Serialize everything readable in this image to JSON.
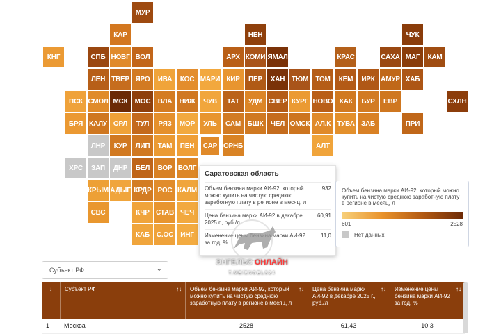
{
  "chart_data": {
    "type": "heatmap",
    "colors": {
      "no_data": "#c8c8c8",
      "scale": [
        "#f7d07a",
        "#e9932c",
        "#b35a12",
        "#6e2b07"
      ]
    },
    "tiles": [
      {
        "label": "МУР",
        "fill": "#9e4a10"
      },
      {
        "label": "КАР",
        "fill": "#d3771f"
      },
      {
        "label": "НЕН",
        "fill": "#8f400c"
      },
      {
        "label": "ЧУК",
        "fill": "#8a3c0a"
      },
      {
        "label": "КНГ",
        "fill": "#eb9a34"
      },
      {
        "label": "СПБ",
        "fill": "#9a4710"
      },
      {
        "label": "НОВГ",
        "fill": "#e08a2b"
      },
      {
        "label": "ВОЛ",
        "fill": "#c2661a"
      },
      {
        "label": "АРХ",
        "fill": "#b95f17"
      },
      {
        "label": "КОМИ",
        "fill": "#a9541a"
      },
      {
        "label": "ЯМАЛ",
        "fill": "#7a3208"
      },
      {
        "label": "КРАС",
        "fill": "#b4601a"
      },
      {
        "label": "НЕТ",
        "fill": "#ffffff",
        "hidden": true
      },
      {
        "label": "САХА",
        "fill": "#9a4812"
      },
      {
        "label": "МАГ",
        "fill": "#8a3c0a"
      },
      {
        "label": "КАМ",
        "fill": "#a04d12"
      },
      {
        "label": "ЛЕН",
        "fill": "#b75f18"
      },
      {
        "label": "ТВЕР",
        "fill": "#c66d1e"
      },
      {
        "label": "ЯРО",
        "fill": "#d27a22"
      },
      {
        "label": "ИВА",
        "fill": "#f0a43a"
      },
      {
        "label": "КОС",
        "fill": "#e38d2d"
      },
      {
        "label": "МАРИ",
        "fill": "#f2a83e"
      },
      {
        "label": "КИР",
        "fill": "#e8952f"
      },
      {
        "label": "ПЕР",
        "fill": "#b05a16"
      },
      {
        "label": "ХАН",
        "fill": "#7a3208"
      },
      {
        "label": "ТЮМ",
        "fill": "#a9541a"
      },
      {
        "label": "ТОМ",
        "fill": "#b55d17"
      },
      {
        "label": "КЕМ",
        "fill": "#b35a16"
      },
      {
        "label": "ИРК",
        "fill": "#b05816"
      },
      {
        "label": "АМУР",
        "fill": "#c06819"
      },
      {
        "label": "ХАБ",
        "fill": "#ad5616"
      },
      {
        "label": "ПСК",
        "fill": "#efa23a"
      },
      {
        "label": "СМОЛ",
        "fill": "#e08b2a"
      },
      {
        "label": "МСК",
        "fill": "#6b2a06"
      },
      {
        "label": "МОС",
        "fill": "#8e3f0c"
      },
      {
        "label": "ВЛА",
        "fill": "#d47c22"
      },
      {
        "label": "НИЖ",
        "fill": "#d07822"
      },
      {
        "label": "ЧУВ",
        "fill": "#f1a63c"
      },
      {
        "label": "ТАТ",
        "fill": "#bb6319"
      },
      {
        "label": "УДМ",
        "fill": "#dc8526"
      },
      {
        "label": "СВЕР",
        "fill": "#b45c17"
      },
      {
        "label": "КУРГ",
        "fill": "#eb9a33"
      },
      {
        "label": "НОВО",
        "fill": "#b95f18"
      },
      {
        "label": "ХАК",
        "fill": "#d17a21"
      },
      {
        "label": "БУР",
        "fill": "#d27b23"
      },
      {
        "label": "ЕВР",
        "fill": "#cf7720"
      },
      {
        "label": "СХЛН",
        "fill": "#8c3d0b"
      },
      {
        "label": "БРЯ",
        "fill": "#eb9932"
      },
      {
        "label": "КАЛУ",
        "fill": "#cf7720"
      },
      {
        "label": "ОРЛ",
        "fill": "#efa238"
      },
      {
        "label": "ТУЛ",
        "fill": "#c46a1c"
      },
      {
        "label": "РЯЗ",
        "fill": "#e5902c"
      },
      {
        "label": "МОР",
        "fill": "#f2a93f"
      },
      {
        "label": "УЛЬ",
        "fill": "#e8952f"
      },
      {
        "label": "САМ",
        "fill": "#d27b23"
      },
      {
        "label": "БШК",
        "fill": "#d07921"
      },
      {
        "label": "ЧЕЛ",
        "fill": "#c56c1d"
      },
      {
        "label": "ОМСК",
        "fill": "#cd751f"
      },
      {
        "label": "АЛ.К",
        "fill": "#e08a2a"
      },
      {
        "label": "ТУВА",
        "fill": "#e3902c"
      },
      {
        "label": "ЗАБ",
        "fill": "#d98125"
      },
      {
        "label": "ПРИ",
        "fill": "#c06719"
      },
      {
        "label": "ЛНР",
        "fill": "#c8c8c8"
      },
      {
        "label": "КУР",
        "fill": "#d17921"
      },
      {
        "label": "ЛИП",
        "fill": "#d07821"
      },
      {
        "label": "ТАМ",
        "fill": "#eb9a33"
      },
      {
        "label": "ПЕН",
        "fill": "#ef9f37"
      },
      {
        "label": "САР",
        "fill": "#e08a2a",
        "selected": true
      },
      {
        "label": "ОРНБ",
        "fill": "#d98325"
      },
      {
        "label": "АЛТ",
        "fill": "#f0a43b"
      },
      {
        "label": "ХРС",
        "fill": "#c8c8c8"
      },
      {
        "label": "ЗАП",
        "fill": "#c8c8c8"
      },
      {
        "label": "ДНР",
        "fill": "#c8c8c8"
      },
      {
        "label": "БЕЛ",
        "fill": "#bf6519"
      },
      {
        "label": "ВОР",
        "fill": "#d88125"
      },
      {
        "label": "ВОЛГ",
        "fill": "#dd8727"
      },
      {
        "label": "КРЫМ",
        "fill": "#eda036"
      },
      {
        "label": "АДЫГ",
        "fill": "#f0a53c"
      },
      {
        "label": "КРДР",
        "fill": "#d37c23"
      },
      {
        "label": "РОС",
        "fill": "#e18c2b"
      },
      {
        "label": "КАЛМ",
        "fill": "#f0a53c"
      },
      {
        "label": "СВС",
        "fill": "#e9972f"
      },
      {
        "label": "КЧР",
        "fill": "#f0a43b"
      },
      {
        "label": "СТАВ",
        "fill": "#e8952f"
      },
      {
        "label": "ЧЕЧ",
        "fill": "#f2a93f"
      },
      {
        "label": "КАБ",
        "fill": "#f0a53c"
      },
      {
        "label": "С.ОС",
        "fill": "#efa23a"
      },
      {
        "label": "ИНГ",
        "fill": "#f3ab41"
      }
    ]
  },
  "tooltip": {
    "title": "Саратовская область",
    "rows": [
      {
        "label": "Объем бензина марки АИ-92, который можно купить на чистую среднюю заработную плату в регионе в месяц, л",
        "value": "932"
      },
      {
        "label": "Цена бензина марки АИ-92 в декабре 2025 г., руб./л",
        "value": "60,91"
      },
      {
        "label": "Изменение цены бензина марки АИ-92 за год, %",
        "value": "11,0"
      }
    ]
  },
  "legend": {
    "title": "Объем бензина марки АИ-92, который можно купить на чистую среднюю заработную плату в регионе в месяц, л",
    "min": "601",
    "max": "2528",
    "no_data": "Нет данных"
  },
  "filter": {
    "label": "Субъект РФ"
  },
  "watermark": {
    "line1a": "ЭНГЕЛЬС",
    "line1b": "ОНЛАЙН",
    "line2": "T.ME/ENGELS24"
  },
  "table": {
    "headers": [
      {
        "text": "↓",
        "sort": ""
      },
      {
        "text": "Субъект РФ",
        "sort": "↑↓"
      },
      {
        "text": "Объем бензина марки АИ-92, который можно купить на чистую среднюю заработную плату в регионе в месяц, л",
        "sort": "↑↓"
      },
      {
        "text": "Цена бензина марки АИ-92 в декабре 2025 г., руб./л",
        "sort": "↑↓"
      },
      {
        "text": "Изменение цены бензина марки АИ-92 за год, %",
        "sort": "↑↓"
      }
    ],
    "rows": [
      [
        "1",
        "Москва",
        "2528",
        "61,43",
        "10,3"
      ]
    ]
  }
}
